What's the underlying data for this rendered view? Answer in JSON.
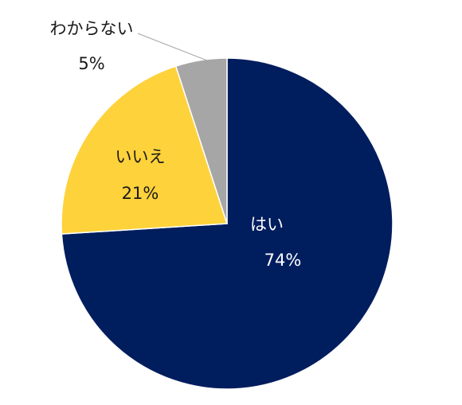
{
  "chart_data": {
    "type": "pie",
    "title": "",
    "slices": [
      {
        "label": "はい",
        "value": 74,
        "value_label": "74%",
        "color": "#001D5E",
        "label_color": "#FFFFFF"
      },
      {
        "label": "いいえ",
        "value": 21,
        "value_label": "21%",
        "color": "#FED23B",
        "label_color": "#1A1A1A"
      },
      {
        "label": "わからない",
        "value": 5,
        "value_label": "5%",
        "color": "#A6A6A6",
        "label_color": "#1A1A1A"
      }
    ],
    "start": "12 o'clock",
    "direction": "clockwise",
    "legend": "none"
  }
}
